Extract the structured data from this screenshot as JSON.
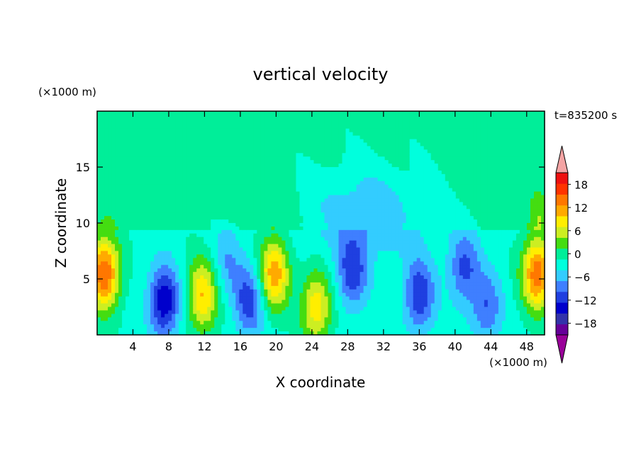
{
  "chart_data": {
    "type": "heatmap",
    "title": "vertical velocity",
    "xlabel": "X coordinate",
    "ylabel": "Z coordinate",
    "x_unit": "(×1000 m)",
    "y_unit": "(×1000 m)",
    "time_label": "t=835200 s",
    "xlim": [
      0,
      50
    ],
    "ylim": [
      0,
      20
    ],
    "x_ticks": [
      4,
      8,
      12,
      16,
      20,
      24,
      28,
      32,
      36,
      40,
      44,
      48
    ],
    "y_ticks": [
      5,
      10,
      15
    ],
    "colorbar": {
      "levels": [
        -21,
        -18,
        -15,
        -12,
        -9,
        -6,
        -3,
        0,
        3,
        6,
        9,
        12,
        15,
        18,
        21
      ],
      "tick_labels": [
        18,
        12,
        6,
        0,
        -6,
        -12,
        -18
      ],
      "colors": [
        "#660099",
        "#3333aa",
        "#0000cc",
        "#1f3fe0",
        "#3f7fff",
        "#33ccff",
        "#00ffdd",
        "#00ee99",
        "#44dd11",
        "#ccee22",
        "#ffee00",
        "#ffaa00",
        "#ff7700",
        "#ff3300",
        "#ee1111"
      ],
      "overflow_low": "#990099",
      "overflow_high": "#f4a4a4"
    },
    "features": [
      {
        "x": 0.8,
        "z": 5.5,
        "value": 19
      },
      {
        "x": 7.5,
        "z": 3.0,
        "value": -14
      },
      {
        "x": 11.8,
        "z": 3.5,
        "value": 13
      },
      {
        "x": 14.5,
        "z": 6.5,
        "value": -5
      },
      {
        "x": 17.0,
        "z": 3.0,
        "value": -10
      },
      {
        "x": 19.8,
        "z": 5.5,
        "value": 15
      },
      {
        "x": 24.5,
        "z": 2.5,
        "value": 12
      },
      {
        "x": 28.5,
        "z": 5.5,
        "value": -10
      },
      {
        "x": 36.0,
        "z": 3.5,
        "value": -11
      },
      {
        "x": 41.0,
        "z": 6.0,
        "value": -9
      },
      {
        "x": 43.5,
        "z": 2.5,
        "value": -8
      },
      {
        "x": 49.2,
        "z": 5.5,
        "value": 18
      },
      {
        "x": 30.0,
        "z": 11.0,
        "value": -3
      },
      {
        "x": 12.0,
        "z": 16.0,
        "value": 1
      }
    ]
  }
}
